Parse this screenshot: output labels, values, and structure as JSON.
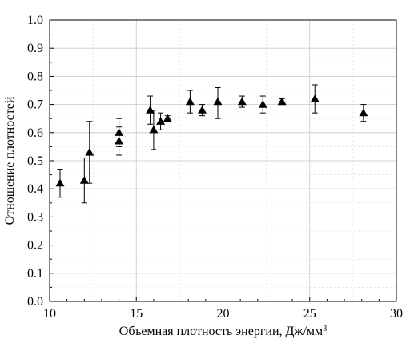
{
  "chart_data": {
    "type": "scatter",
    "title": "",
    "xlabel": "Объемная плотность энергии, Дж/мм",
    "xlabel_superscript": "3",
    "ylabel": "Отношение плотностей",
    "xlim": [
      10,
      30
    ],
    "ylim": [
      0.0,
      1.0
    ],
    "x_ticks": [
      10,
      15,
      20,
      25,
      30
    ],
    "y_ticks": [
      0.0,
      0.1,
      0.2,
      0.3,
      0.4,
      0.5,
      0.6,
      0.7,
      0.8,
      0.9,
      1.0
    ],
    "x_tick_labels": [
      "10",
      "15",
      "20",
      "25",
      "30"
    ],
    "y_tick_labels": [
      "0.0",
      "0.1",
      "0.2",
      "0.3",
      "0.4",
      "0.5",
      "0.6",
      "0.7",
      "0.8",
      "0.9",
      "1.0"
    ],
    "grid": true,
    "marker": "triangle",
    "color": "#000000",
    "points": [
      {
        "x": 10.6,
        "y": 0.42,
        "err_low": 0.05,
        "err_high": 0.05
      },
      {
        "x": 12.0,
        "y": 0.43,
        "err_low": 0.08,
        "err_high": 0.08
      },
      {
        "x": 12.3,
        "y": 0.53,
        "err_low": 0.11,
        "err_high": 0.11
      },
      {
        "x": 14.0,
        "y": 0.6,
        "err_low": 0.05,
        "err_high": 0.05
      },
      {
        "x": 14.0,
        "y": 0.57,
        "err_low": 0.05,
        "err_high": 0.05
      },
      {
        "x": 15.8,
        "y": 0.68,
        "err_low": 0.05,
        "err_high": 0.05
      },
      {
        "x": 16.0,
        "y": 0.61,
        "err_low": 0.07,
        "err_high": 0.07
      },
      {
        "x": 16.4,
        "y": 0.64,
        "err_low": 0.03,
        "err_high": 0.03
      },
      {
        "x": 16.8,
        "y": 0.65,
        "err_low": 0.01,
        "err_high": 0.01
      },
      {
        "x": 18.1,
        "y": 0.71,
        "err_low": 0.04,
        "err_high": 0.04
      },
      {
        "x": 18.8,
        "y": 0.68,
        "err_low": 0.02,
        "err_high": 0.02
      },
      {
        "x": 19.7,
        "y": 0.71,
        "err_low": 0.06,
        "err_high": 0.05
      },
      {
        "x": 21.1,
        "y": 0.71,
        "err_low": 0.02,
        "err_high": 0.02
      },
      {
        "x": 22.3,
        "y": 0.7,
        "err_low": 0.03,
        "err_high": 0.03
      },
      {
        "x": 23.4,
        "y": 0.71,
        "err_low": 0.01,
        "err_high": 0.01
      },
      {
        "x": 25.3,
        "y": 0.72,
        "err_low": 0.05,
        "err_high": 0.05
      },
      {
        "x": 28.1,
        "y": 0.67,
        "err_low": 0.03,
        "err_high": 0.03
      }
    ]
  }
}
